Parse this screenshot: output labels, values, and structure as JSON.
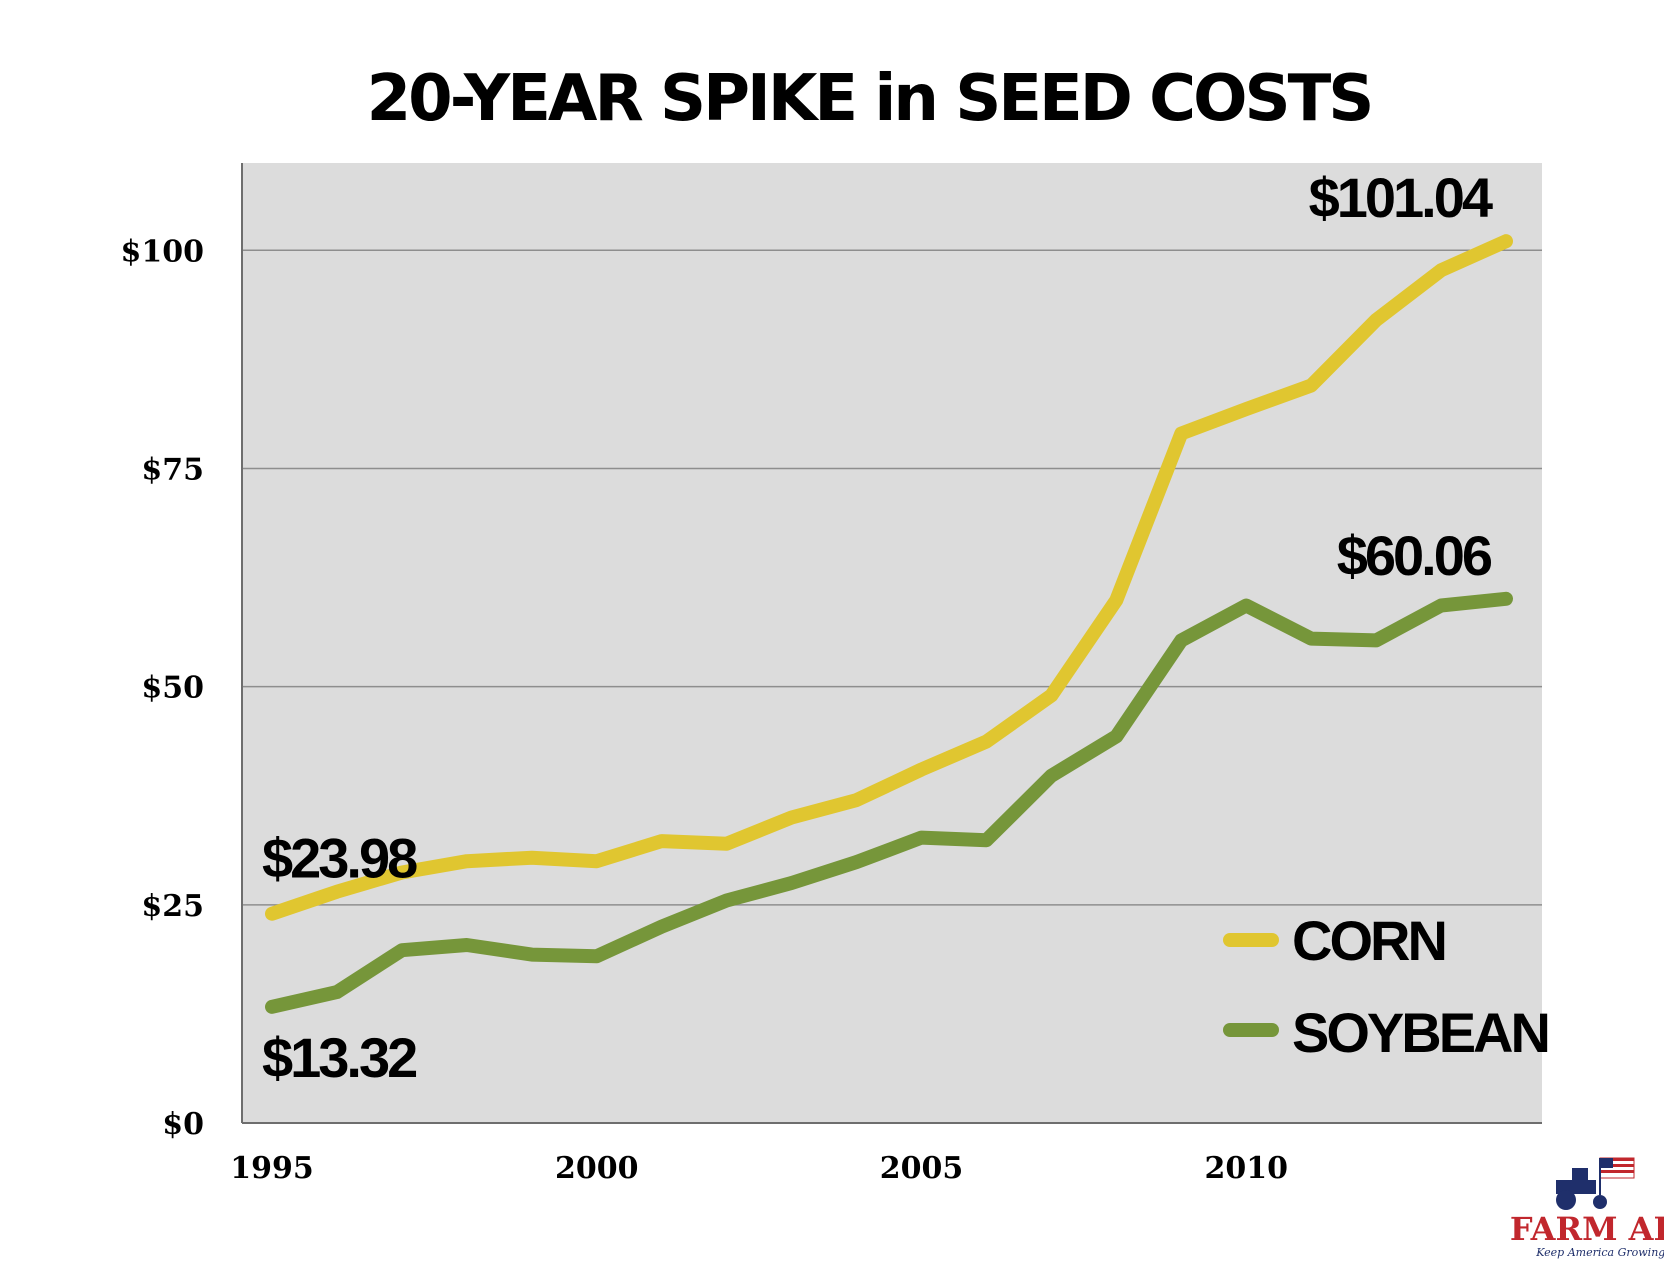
{
  "chart_data": {
    "type": "line",
    "title": "20-YEAR SPIKE in SEED COSTS",
    "xlabel": "",
    "ylabel": "",
    "x": [
      1995,
      1996,
      1997,
      1998,
      1999,
      2000,
      2001,
      2002,
      2003,
      2004,
      2005,
      2006,
      2007,
      2008,
      2009,
      2010,
      2011,
      2012,
      2013,
      2014
    ],
    "xlim": [
      1995,
      2014
    ],
    "ylim": [
      0,
      110
    ],
    "x_ticks": [
      1995,
      2000,
      2005,
      2010
    ],
    "x_tick_labels": [
      "1995",
      "2000",
      "2005",
      "2010"
    ],
    "y_ticks": [
      0,
      25,
      50,
      75,
      100
    ],
    "y_tick_labels": [
      "$0",
      "$25",
      "$50",
      "$75",
      "$100"
    ],
    "grid": true,
    "legend_position": "bottom-right",
    "background": "#dcdcdc",
    "series": [
      {
        "name": "CORN",
        "color": "#e0c630",
        "values": [
          23.98,
          26.5,
          28.7,
          30.0,
          30.4,
          30.0,
          32.3,
          32.0,
          35.0,
          37.0,
          40.5,
          43.7,
          49.0,
          59.9,
          79.0,
          81.8,
          84.5,
          92.0,
          97.7,
          101.04
        ]
      },
      {
        "name": "SOYBEAN",
        "color": "#76963a",
        "values": [
          13.32,
          15.0,
          19.8,
          20.4,
          19.3,
          19.1,
          22.5,
          25.5,
          27.5,
          29.9,
          32.7,
          32.4,
          39.8,
          44.3,
          55.3,
          59.3,
          55.5,
          55.3,
          59.3,
          60.06
        ]
      }
    ],
    "annotations": [
      {
        "label": "$23.98",
        "series": "CORN",
        "x": 1995
      },
      {
        "label": "$13.32",
        "series": "SOYBEAN",
        "x": 1995
      },
      {
        "label": "$101.04",
        "series": "CORN",
        "x": 2014
      },
      {
        "label": "$60.06",
        "series": "SOYBEAN",
        "x": 2014
      }
    ]
  },
  "logo": {
    "name": "FARM AID",
    "tagline": "Keep America Growing!",
    "icon": "tractor-flag-icon"
  }
}
